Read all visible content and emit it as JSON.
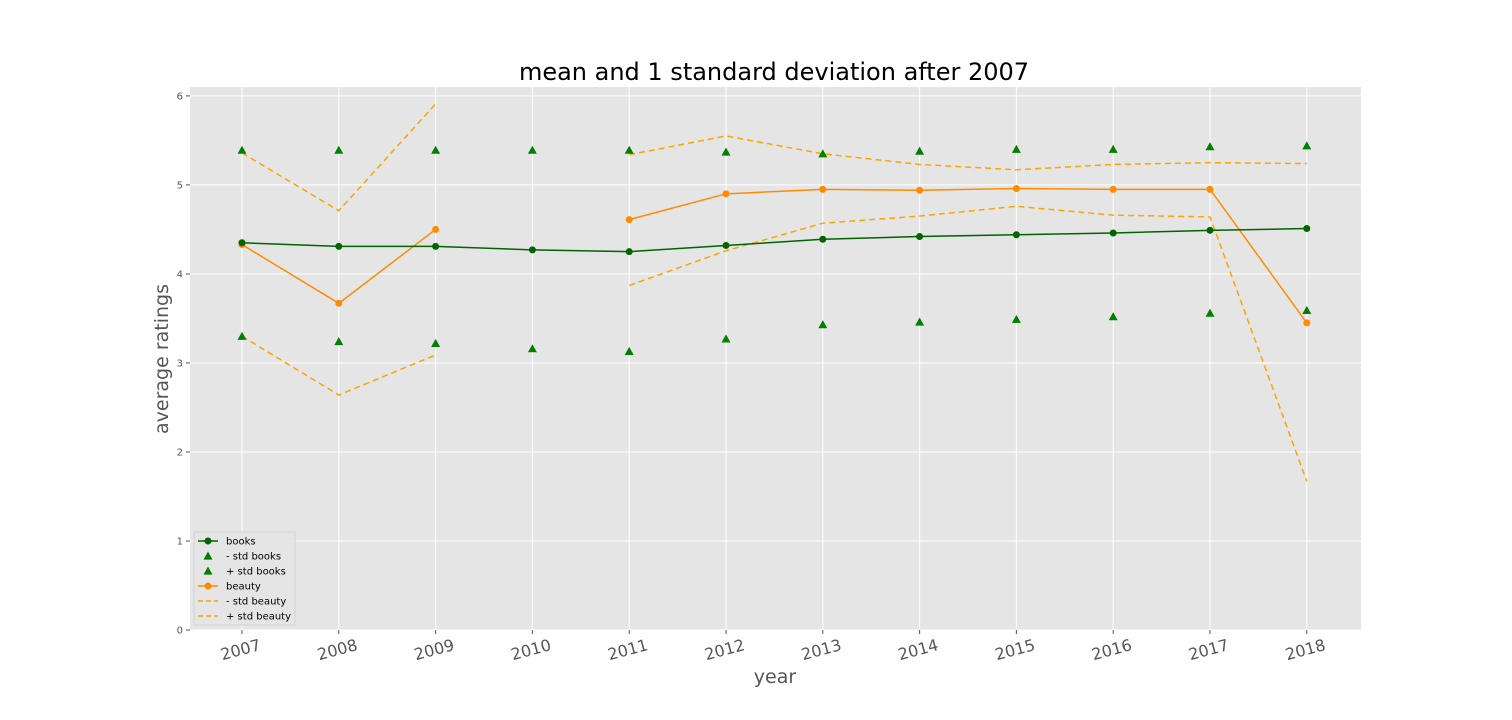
{
  "chart_data": {
    "type": "line",
    "title": "mean and 1 standard deviation after 2007",
    "xlabel": "year",
    "ylabel": "average ratings",
    "x": [
      "2007",
      "2008",
      "2009",
      "2010",
      "2011",
      "2012",
      "2013",
      "2014",
      "2015",
      "2016",
      "2017",
      "2018"
    ],
    "y_ticks": [
      "0",
      "1",
      "2",
      "3",
      "4",
      "5",
      "6"
    ],
    "ylim": [
      0,
      6.1
    ],
    "grid": true,
    "legend_position": "lower-left",
    "colors": {
      "books": "#006400",
      "std_books": "#008000",
      "beauty": "#ff8c00",
      "std_beauty": "#ffa500",
      "plot_bg": "#e5e5e5",
      "grid": "#ffffff"
    },
    "series": [
      {
        "name": "books",
        "style": "line-marker-circle",
        "values": [
          4.35,
          4.31,
          4.31,
          4.27,
          4.25,
          4.32,
          4.39,
          4.42,
          4.44,
          4.46,
          4.49,
          4.51
        ]
      },
      {
        "name": "- std books",
        "style": "marker-triangle",
        "values": [
          3.3,
          3.24,
          3.22,
          3.16,
          3.13,
          3.27,
          3.43,
          3.46,
          3.49,
          3.52,
          3.56,
          3.59
        ]
      },
      {
        "name": "+ std books",
        "style": "marker-triangle",
        "values": [
          5.39,
          5.39,
          5.39,
          5.39,
          5.39,
          5.37,
          5.35,
          5.38,
          5.4,
          5.4,
          5.43,
          5.44
        ]
      },
      {
        "name": "beauty",
        "style": "line-marker-circle",
        "values": [
          4.33,
          3.67,
          4.5,
          null,
          4.61,
          4.9,
          4.95,
          4.94,
          4.96,
          4.95,
          4.95,
          3.45
        ]
      },
      {
        "name": "- std beauty",
        "style": "dashed",
        "values": [
          3.3,
          2.64,
          3.09,
          null,
          3.87,
          4.26,
          4.57,
          4.65,
          4.76,
          4.66,
          4.64,
          1.67
        ]
      },
      {
        "name": "+ std beauty",
        "style": "dashed",
        "values": [
          5.36,
          4.71,
          5.91,
          null,
          5.34,
          5.55,
          5.35,
          5.23,
          5.17,
          5.23,
          5.25,
          5.24
        ]
      }
    ]
  }
}
